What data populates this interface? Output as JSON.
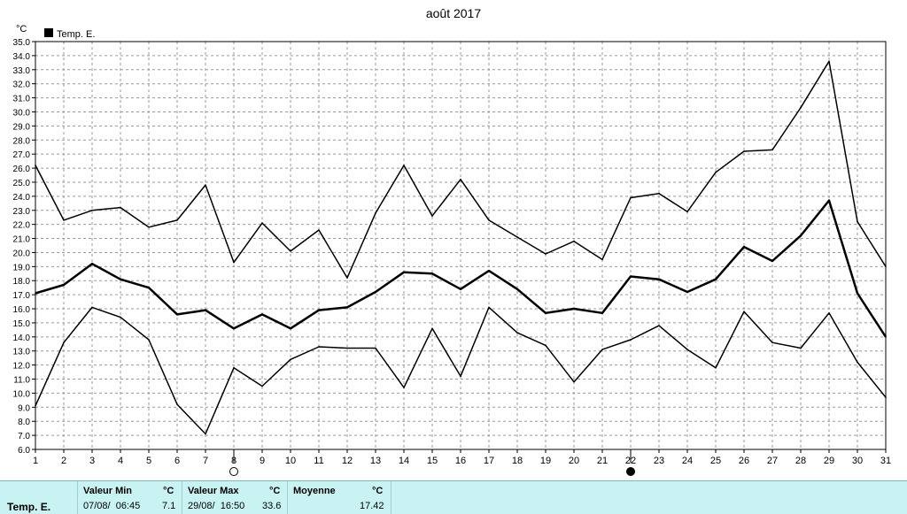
{
  "chart_data": {
    "type": "line",
    "title": "août 2017",
    "unit_label": "°C",
    "legend": {
      "label": "Temp. E.",
      "placement": "top-left"
    },
    "ylim": [
      6.0,
      35.0
    ],
    "y_ticks": [
      "6.0",
      "7.0",
      "8.0",
      "9.0",
      "10.0",
      "11.0",
      "12.0",
      "13.0",
      "14.0",
      "15.0",
      "16.0",
      "17.0",
      "18.0",
      "19.0",
      "20.0",
      "21.0",
      "22.0",
      "23.0",
      "24.0",
      "25.0",
      "26.0",
      "27.0",
      "28.0",
      "29.0",
      "30.0",
      "31.0",
      "32.0",
      "33.0",
      "34.0",
      "35.0"
    ],
    "x_ticks": [
      "1",
      "2",
      "3",
      "4",
      "5",
      "6",
      "7",
      "8",
      "9",
      "10",
      "11",
      "12",
      "13",
      "14",
      "15",
      "16",
      "17",
      "18",
      "19",
      "20",
      "21",
      "22",
      "23",
      "24",
      "25",
      "26",
      "27",
      "28",
      "29",
      "30",
      "31"
    ],
    "grid": true,
    "moon_phases": [
      {
        "day": 7.5,
        "symbol": "○"
      },
      {
        "day": 21.5,
        "symbol": "●"
      }
    ],
    "series": [
      {
        "role": "max",
        "color": "#000000",
        "values": [
          26.2,
          22.3,
          23.0,
          23.2,
          21.8,
          22.3,
          24.8,
          19.3,
          22.1,
          20.1,
          21.6,
          18.2,
          22.8,
          26.2,
          22.6,
          25.2,
          22.3,
          21.1,
          19.9,
          20.8,
          19.5,
          23.9,
          24.2,
          22.9,
          25.7,
          27.2,
          27.3,
          30.3,
          33.6,
          22.2,
          19.0
        ]
      },
      {
        "role": "mean",
        "color": "#000000",
        "values": [
          17.1,
          17.7,
          19.2,
          18.1,
          17.5,
          15.6,
          15.9,
          14.6,
          15.6,
          14.6,
          15.9,
          16.1,
          17.2,
          18.6,
          18.5,
          17.4,
          18.7,
          17.4,
          15.7,
          16.0,
          15.7,
          18.3,
          18.1,
          17.2,
          18.1,
          20.4,
          19.4,
          21.2,
          23.7,
          17.1,
          14.0
        ]
      },
      {
        "role": "min",
        "color": "#000000",
        "values": [
          9.1,
          13.6,
          16.1,
          15.4,
          13.8,
          9.2,
          7.1,
          11.8,
          10.5,
          12.4,
          13.3,
          13.2,
          13.2,
          10.4,
          14.6,
          11.2,
          16.1,
          14.3,
          13.4,
          10.8,
          13.1,
          13.8,
          14.8,
          13.1,
          11.8,
          15.8,
          13.6,
          13.2,
          15.7,
          12.2,
          9.7
        ]
      }
    ]
  },
  "summary": {
    "row_label": "Temp. E.",
    "min_header": "Valeur Min",
    "min_unit": "°C",
    "min_when": "07/08/  06:45",
    "min_value": "7.1",
    "max_header": "Valeur Max",
    "max_unit": "°C",
    "max_when": "29/08/  16:50",
    "max_value": "33.6",
    "avg_header": "Moyenne",
    "avg_unit": "°C",
    "avg_value": "17.42"
  }
}
